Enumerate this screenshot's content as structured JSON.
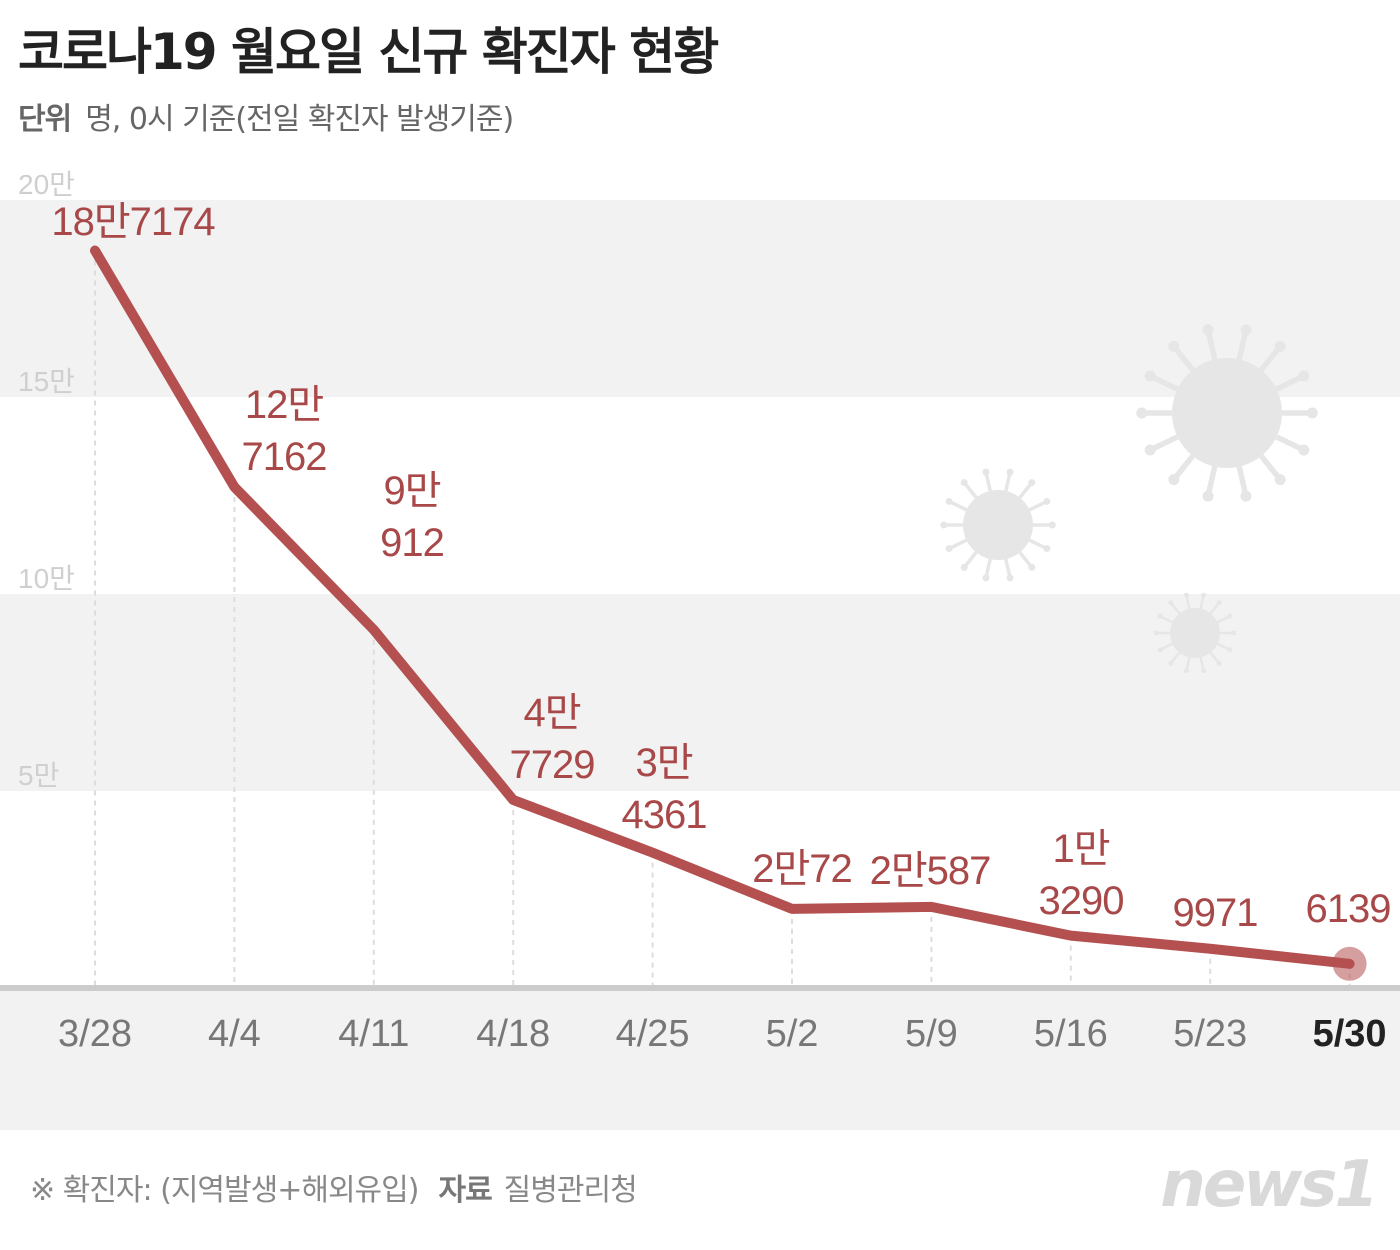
{
  "title": "코로나19 월요일 신규 확진자 현황",
  "subtitle": {
    "unit_label": "단위",
    "unit_text": "명, 0시 기준(전일 확진자 발생기준)"
  },
  "footer": {
    "note": "※ 확진자: (지역발생+해외유입)",
    "source_label": "자료",
    "source": "질병관리청"
  },
  "logo": "news1",
  "colors": {
    "line": "#b55050",
    "label": "#a84848",
    "band": "#f2f2f2",
    "axis": "#cccccc",
    "virus": "#e6e6e6"
  },
  "chart_data": {
    "type": "line",
    "title": "코로나19 월요일 신규 확진자 현황",
    "xlabel": "",
    "ylabel": "명",
    "ylim": [
      0,
      200000
    ],
    "yticks": [
      {
        "v": 50000,
        "label": "5만"
      },
      {
        "v": 100000,
        "label": "10만"
      },
      {
        "v": 150000,
        "label": "15만"
      },
      {
        "v": 200000,
        "label": "20만"
      }
    ],
    "categories": [
      "3/28",
      "4/4",
      "4/11",
      "4/18",
      "4/25",
      "5/2",
      "5/9",
      "5/16",
      "5/23",
      "5/30"
    ],
    "values": [
      187174,
      127162,
      90912,
      47729,
      34361,
      20072,
      20587,
      13290,
      9971,
      6139
    ],
    "data_labels": [
      [
        "18만7174"
      ],
      [
        "12만",
        "7162"
      ],
      [
        "9만",
        "912"
      ],
      [
        "4만",
        "7729"
      ],
      [
        "3만",
        "4361"
      ],
      [
        "2만72"
      ],
      [
        "2만587"
      ],
      [
        "1만",
        "3290"
      ],
      [
        "9971"
      ],
      [
        "6139"
      ]
    ],
    "highlight": "5/30"
  }
}
